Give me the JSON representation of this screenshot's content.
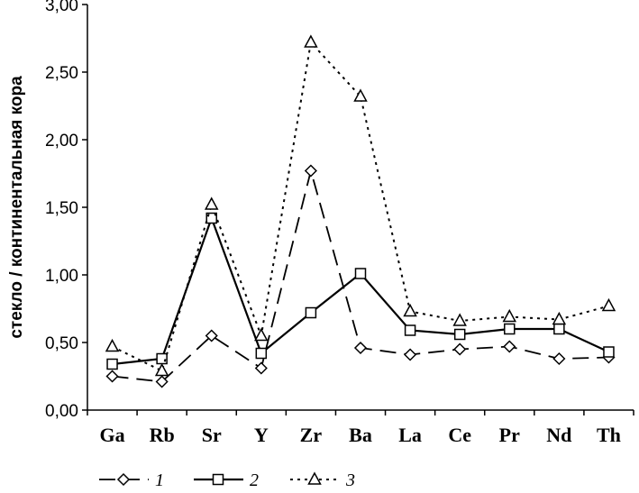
{
  "chart_data": {
    "type": "line",
    "title": "",
    "xlabel": "",
    "ylabel": "стекло / континентальная кора",
    "categories": [
      "Ga",
      "Rb",
      "Sr",
      "Y",
      "Zr",
      "Ba",
      "La",
      "Ce",
      "Pr",
      "Nd",
      "Th"
    ],
    "y_ticks": [
      "0,00",
      "0,50",
      "1,00",
      "1,50",
      "2,00",
      "2,50",
      "3,00"
    ],
    "ylim": [
      0,
      3
    ],
    "grid": false,
    "legend_position": "bottom",
    "series": [
      {
        "name": "1",
        "marker": "diamond",
        "line_style": "dashed",
        "values": [
          0.25,
          0.21,
          0.55,
          0.31,
          1.77,
          0.46,
          0.41,
          0.45,
          0.47,
          0.38,
          0.39
        ]
      },
      {
        "name": "2",
        "marker": "square",
        "line_style": "solid",
        "values": [
          0.34,
          0.38,
          1.42,
          0.42,
          0.72,
          1.01,
          0.59,
          0.56,
          0.6,
          0.6,
          0.43
        ]
      },
      {
        "name": "3",
        "marker": "triangle",
        "line_style": "dotted",
        "values": [
          0.47,
          0.29,
          1.52,
          0.55,
          2.72,
          2.32,
          0.73,
          0.66,
          0.69,
          0.67,
          0.77
        ]
      }
    ]
  }
}
